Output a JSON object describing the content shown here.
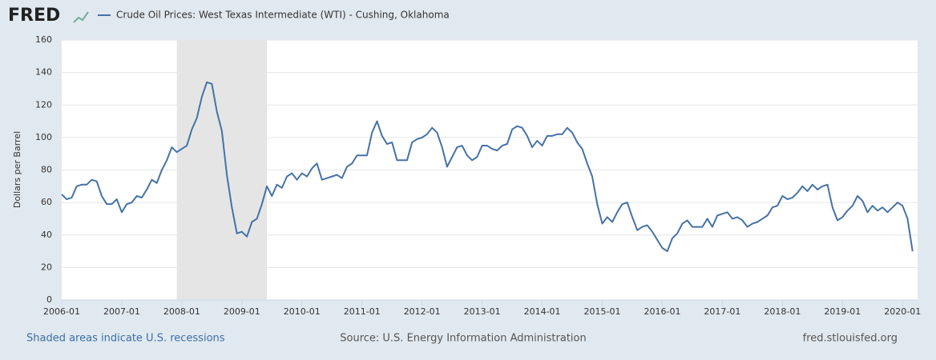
{
  "logo": "FRED",
  "footer": {
    "recessions_note": "Shaded areas indicate U.S. recessions",
    "source": "Source: U.S. Energy Information Administration",
    "site": "fred.stlouisfed.org"
  },
  "chart_data": {
    "type": "line",
    "y_label": "Dollars per Barrel",
    "x": [
      "2006-01",
      "2006-02",
      "2006-03",
      "2006-04",
      "2006-05",
      "2006-06",
      "2006-07",
      "2006-08",
      "2006-09",
      "2006-10",
      "2006-11",
      "2006-12",
      "2007-01",
      "2007-02",
      "2007-03",
      "2007-04",
      "2007-05",
      "2007-06",
      "2007-07",
      "2007-08",
      "2007-09",
      "2007-10",
      "2007-11",
      "2007-12",
      "2008-01",
      "2008-02",
      "2008-03",
      "2008-04",
      "2008-05",
      "2008-06",
      "2008-07",
      "2008-08",
      "2008-09",
      "2008-10",
      "2008-11",
      "2008-12",
      "2009-01",
      "2009-02",
      "2009-03",
      "2009-04",
      "2009-05",
      "2009-06",
      "2009-07",
      "2009-08",
      "2009-09",
      "2009-10",
      "2009-11",
      "2009-12",
      "2010-01",
      "2010-02",
      "2010-03",
      "2010-04",
      "2010-05",
      "2010-06",
      "2010-07",
      "2010-08",
      "2010-09",
      "2010-10",
      "2010-11",
      "2010-12",
      "2011-01",
      "2011-02",
      "2011-03",
      "2011-04",
      "2011-05",
      "2011-06",
      "2011-07",
      "2011-08",
      "2011-09",
      "2011-10",
      "2011-11",
      "2011-12",
      "2012-01",
      "2012-02",
      "2012-03",
      "2012-04",
      "2012-05",
      "2012-06",
      "2012-07",
      "2012-08",
      "2012-09",
      "2012-10",
      "2012-11",
      "2012-12",
      "2013-01",
      "2013-02",
      "2013-03",
      "2013-04",
      "2013-05",
      "2013-06",
      "2013-07",
      "2013-08",
      "2013-09",
      "2013-10",
      "2013-11",
      "2013-12",
      "2014-01",
      "2014-02",
      "2014-03",
      "2014-04",
      "2014-05",
      "2014-06",
      "2014-07",
      "2014-08",
      "2014-09",
      "2014-10",
      "2014-11",
      "2014-12",
      "2015-01",
      "2015-02",
      "2015-03",
      "2015-04",
      "2015-05",
      "2015-06",
      "2015-07",
      "2015-08",
      "2015-09",
      "2015-10",
      "2015-11",
      "2015-12",
      "2016-01",
      "2016-02",
      "2016-03",
      "2016-04",
      "2016-05",
      "2016-06",
      "2016-07",
      "2016-08",
      "2016-09",
      "2016-10",
      "2016-11",
      "2016-12",
      "2017-01",
      "2017-02",
      "2017-03",
      "2017-04",
      "2017-05",
      "2017-06",
      "2017-07",
      "2017-08",
      "2017-09",
      "2017-10",
      "2017-11",
      "2017-12",
      "2018-01",
      "2018-02",
      "2018-03",
      "2018-04",
      "2018-05",
      "2018-06",
      "2018-07",
      "2018-08",
      "2018-09",
      "2018-10",
      "2018-11",
      "2018-12",
      "2019-01",
      "2019-02",
      "2019-03",
      "2019-04",
      "2019-05",
      "2019-06",
      "2019-07",
      "2019-08",
      "2019-09",
      "2019-10",
      "2019-11",
      "2019-12",
      "2020-01",
      "2020-02",
      "2020-03"
    ],
    "series": [
      {
        "name": "Crude Oil Prices: West Texas Intermediate (WTI) - Cushing, Oklahoma",
        "color": "#4572a7",
        "values": [
          65,
          62,
          63,
          70,
          71,
          71,
          74,
          73,
          64,
          59,
          59,
          62,
          54,
          59,
          60,
          64,
          63,
          68,
          74,
          72,
          80,
          86,
          94,
          91,
          93,
          95,
          105,
          112,
          125,
          134,
          133,
          116,
          104,
          77,
          57,
          41,
          42,
          39,
          48,
          50,
          59,
          70,
          64,
          71,
          69,
          76,
          78,
          74,
          78,
          76,
          81,
          84,
          74,
          75,
          76,
          77,
          75,
          82,
          84,
          89,
          89,
          89,
          103,
          110,
          101,
          96,
          97,
          86,
          86,
          86,
          97,
          99,
          100,
          102,
          106,
          103,
          94,
          82,
          88,
          94,
          95,
          89,
          86,
          88,
          95,
          95,
          93,
          92,
          95,
          96,
          105,
          107,
          106,
          101,
          94,
          98,
          95,
          101,
          101,
          102,
          102,
          106,
          103,
          97,
          93,
          84,
          76,
          59,
          47,
          51,
          48,
          54,
          59,
          60,
          51,
          43,
          45,
          46,
          42,
          37,
          32,
          30,
          38,
          41,
          47,
          49,
          45,
          45,
          45,
          50,
          45,
          52,
          53,
          54,
          50,
          51,
          49,
          45,
          47,
          48,
          50,
          52,
          57,
          58,
          64,
          62,
          63,
          66,
          70,
          67,
          71,
          68,
          70,
          71,
          57,
          49,
          51,
          55,
          58,
          64,
          61,
          54,
          58,
          55,
          57,
          54,
          57,
          60,
          58,
          50,
          30
        ]
      }
    ],
    "recessions": [
      {
        "start": "2007-12",
        "end": "2009-06"
      }
    ],
    "recession_color": "#e5e5e5",
    "xlim": [
      "2006-01",
      "2020-04"
    ],
    "xticks": [
      "2006-01",
      "2007-01",
      "2008-01",
      "2009-01",
      "2010-01",
      "2011-01",
      "2012-01",
      "2013-01",
      "2014-01",
      "2015-01",
      "2016-01",
      "2017-01",
      "2018-01",
      "2019-01",
      "2020-01"
    ],
    "ylim": [
      0,
      160
    ],
    "yticks": [
      0,
      20,
      40,
      60,
      80,
      100,
      120,
      140,
      160
    ],
    "grid": true
  }
}
